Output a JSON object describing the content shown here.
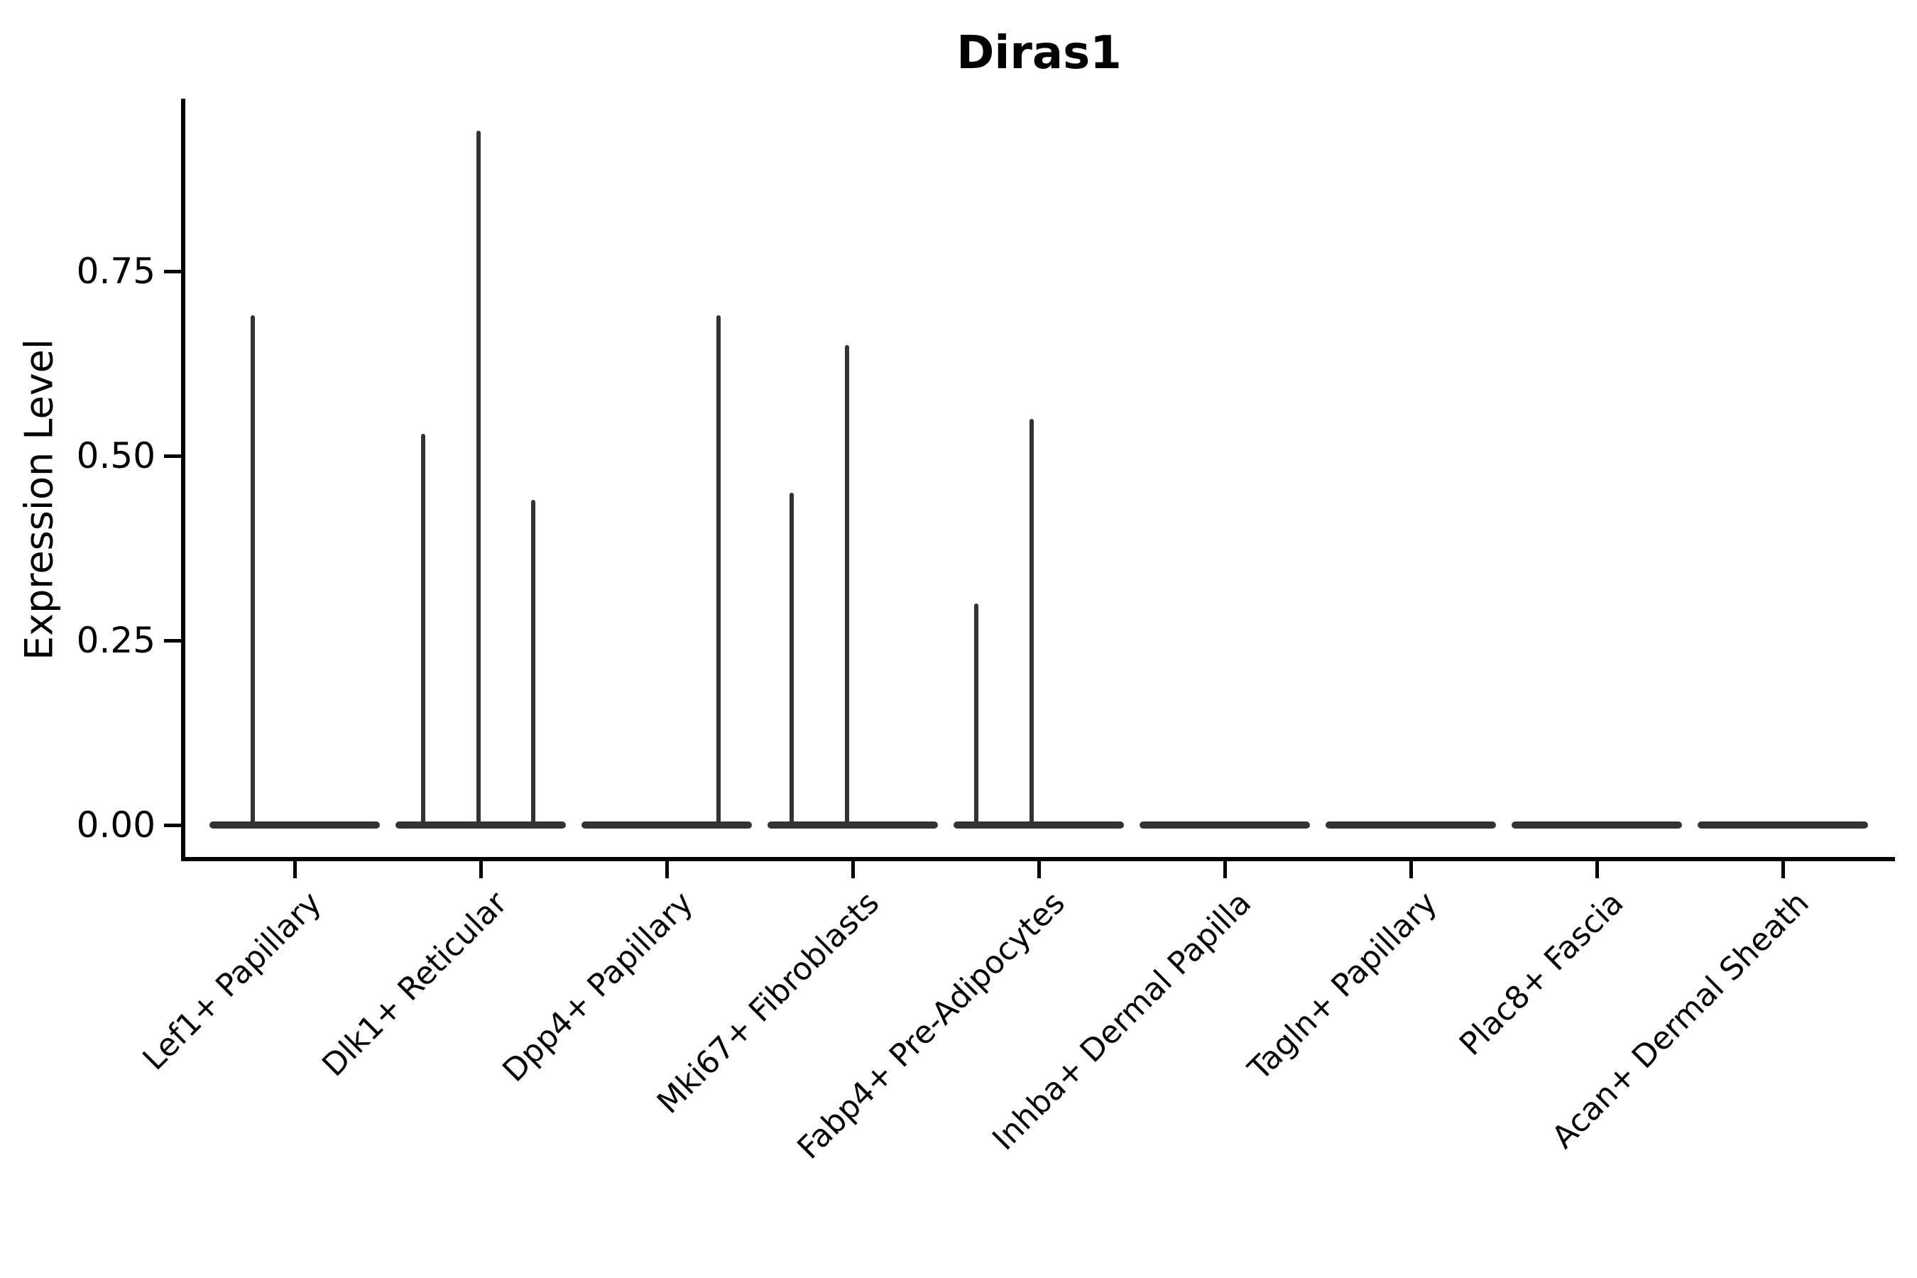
{
  "chart_data": {
    "type": "violin",
    "title": "Diras1",
    "ylabel": "Expression Level",
    "xlabel": "",
    "ylim": [
      -0.05,
      0.99
    ],
    "grid": false,
    "legend": "none",
    "y_ticks": [
      {
        "label": "0.00",
        "value": 0.0
      },
      {
        "label": "0.25",
        "value": 0.25
      },
      {
        "label": "0.50",
        "value": 0.5
      },
      {
        "label": "0.75",
        "value": 0.75
      }
    ],
    "categories": [
      "Lef1+ Papillary",
      "Dlk1+ Reticular",
      "Dpp4+ Papillary",
      "Mki67+ Fibroblasts",
      "Fabp4+ Pre-Adipocytes",
      "Inhba+ Dermal Papilla",
      "Tagln+ Papillary",
      "Plac8+ Fascia",
      "Acan+ Dermal Sheath"
    ],
    "violins": [
      {
        "category": "Lef1+ Papillary",
        "baseline_value": 0.0,
        "spikes": [
          {
            "dx": -59,
            "value": 0.69
          }
        ]
      },
      {
        "category": "Dlk1+ Reticular",
        "baseline_value": 0.0,
        "spikes": [
          {
            "dx": -81,
            "value": 0.53
          },
          {
            "dx": -3,
            "value": 0.94
          },
          {
            "dx": 74,
            "value": 0.44
          }
        ]
      },
      {
        "category": "Dpp4+ Papillary",
        "baseline_value": 0.0,
        "spikes": [
          {
            "dx": 73,
            "value": 0.69
          }
        ]
      },
      {
        "category": "Mki67+ Fibroblasts",
        "baseline_value": 0.0,
        "spikes": [
          {
            "dx": -86,
            "value": 0.45
          },
          {
            "dx": -8,
            "value": 0.65
          }
        ]
      },
      {
        "category": "Fabp4+ Pre-Adipocytes",
        "baseline_value": 0.0,
        "spikes": [
          {
            "dx": -88,
            "value": 0.3
          },
          {
            "dx": -10,
            "value": 0.55
          }
        ]
      },
      {
        "category": "Inhba+ Dermal Papilla",
        "baseline_value": 0.0,
        "spikes": []
      },
      {
        "category": "Tagln+ Papillary",
        "baseline_value": 0.0,
        "spikes": []
      },
      {
        "category": "Plac8+ Fascia",
        "baseline_value": 0.0,
        "spikes": []
      },
      {
        "category": "Acan+ Dermal Sheath",
        "baseline_value": 0.0,
        "spikes": []
      }
    ],
    "colors": {
      "violin": "#333333",
      "axis": "#000000",
      "text": "#000000",
      "background": "#ffffff"
    }
  }
}
